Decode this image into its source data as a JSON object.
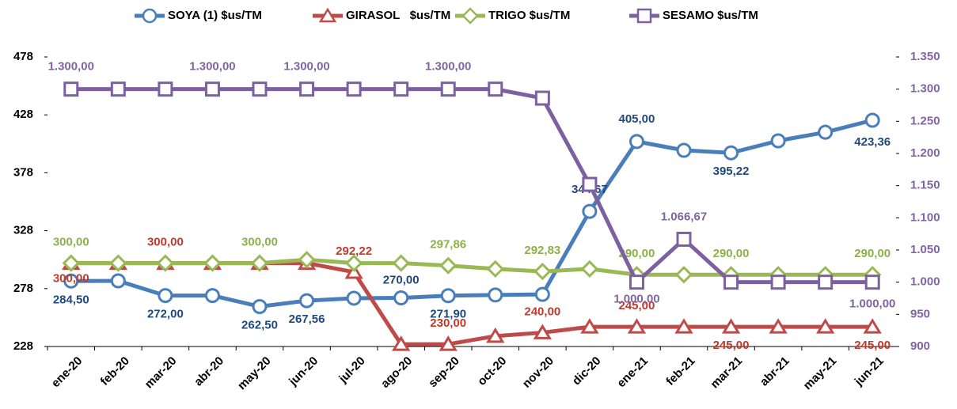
{
  "chart_data": {
    "type": "line",
    "categories": [
      "ene-20",
      "feb-20",
      "mar-20",
      "abr-20",
      "may-20",
      "jun-20",
      "jul-20",
      "ago-20",
      "sep-20",
      "oct-20",
      "nov-20",
      "dic-20",
      "ene-21",
      "feb-21",
      "mar-21",
      "abr-21",
      "may-21",
      "jun-21"
    ],
    "ylim": [
      228,
      478
    ],
    "yticks": [
      228,
      278,
      328,
      378,
      428,
      478
    ],
    "y2lim": [
      900,
      1350
    ],
    "y2ticks": [
      900,
      950,
      {
        "value": 1000,
        "label": "1.000"
      },
      {
        "value": 1050,
        "label": "1.050"
      },
      {
        "value": 1100,
        "label": "1.100"
      },
      {
        "value": 1150,
        "label": "1.150"
      },
      {
        "value": 1200,
        "label": "1.200"
      },
      {
        "value": 1250,
        "label": "1.250"
      },
      {
        "value": 1300,
        "label": "1.300"
      },
      {
        "value": 1350,
        "label": "1.350"
      }
    ],
    "legend": "top",
    "series": [
      {
        "name": "SOYA (1) $us/TM",
        "color": "#4a7ebb",
        "label_color": "#1f497d",
        "marker": "circle",
        "values": [
          284.5,
          284.7,
          272,
          272,
          262.5,
          267.56,
          269.7,
          270,
          271.9,
          272.5,
          273,
          344.67,
          405,
          397.4,
          395.22,
          405.6,
          413,
          423.36
        ],
        "value_labels": [
          "284,50",
          null,
          "272,00",
          null,
          "262,50",
          "267,56",
          null,
          "270,00",
          "271,90",
          null,
          null,
          "344,67",
          "405,00",
          null,
          "395,22",
          null,
          null,
          "423,36"
        ]
      },
      {
        "name": "GIRASOL   $us/TM",
        "color": "#be4b48",
        "label_color": "#c0392b",
        "marker": "triangle",
        "values": [
          300,
          300,
          300,
          300,
          300,
          300,
          292.22,
          230,
          230,
          237,
          240,
          245,
          245,
          245,
          245,
          245,
          245,
          245
        ],
        "value_labels": [
          "300,00",
          null,
          "300,00",
          null,
          null,
          null,
          "292,22",
          null,
          "230,00",
          null,
          "240,00",
          null,
          "245,00",
          null,
          "245,00",
          null,
          null,
          "245,00"
        ]
      },
      {
        "name": "TRIGO $us/TM",
        "color": "#98b954",
        "label_color": "#8db14a",
        "marker": "diamond",
        "values": [
          300,
          300,
          300,
          300,
          300,
          303,
          300,
          300,
          297.86,
          295,
          292.83,
          295,
          290,
          290,
          290,
          290,
          290,
          290
        ],
        "value_labels": [
          "300,00",
          null,
          null,
          null,
          "300,00",
          null,
          null,
          null,
          "297,86",
          null,
          "292,83",
          null,
          "290,00",
          null,
          "290,00",
          null,
          null,
          "290,00"
        ]
      },
      {
        "name": "SESAMO $us/TM",
        "color": "#7d60a0",
        "label_color": "#8064a2",
        "marker": "square",
        "axis": "y2",
        "values": [
          1300,
          1300,
          1300,
          1300,
          1300,
          1300,
          1300,
          1300,
          1300,
          1300,
          1286,
          1152,
          1000,
          1066.67,
          1000,
          1000,
          1000,
          1000
        ],
        "value_labels": [
          "1.300,00",
          null,
          null,
          "1.300,00",
          null,
          "1.300,00",
          null,
          null,
          "1.300,00",
          null,
          null,
          null,
          "1.000,00",
          "1.066,67",
          null,
          null,
          null,
          "1.000,00"
        ]
      }
    ]
  }
}
